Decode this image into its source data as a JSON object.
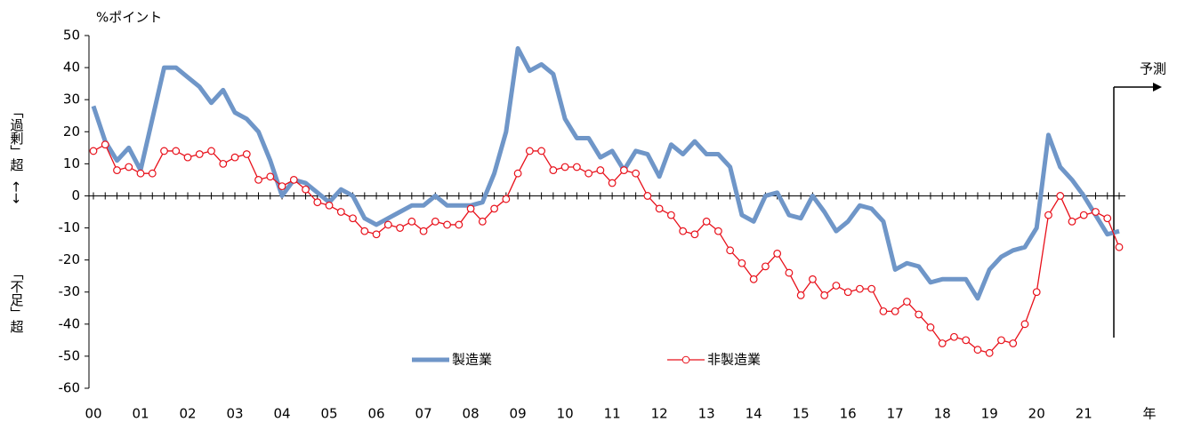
{
  "chart_data": {
    "type": "line",
    "y_axis_unit": "%ポイント",
    "x_axis_label": "年",
    "side_label_top": "「過剰」超",
    "side_label_arrow": "←→",
    "side_label_bottom": "「不足」超",
    "forecast_label": "予測",
    "categories": [
      "00",
      null,
      null,
      null,
      "01",
      null,
      null,
      null,
      "02",
      null,
      null,
      null,
      "03",
      null,
      null,
      null,
      "04",
      null,
      null,
      null,
      "05",
      null,
      null,
      null,
      "06",
      null,
      null,
      null,
      "07",
      null,
      null,
      null,
      "08",
      null,
      null,
      null,
      "09",
      null,
      null,
      null,
      "10",
      null,
      null,
      null,
      "11",
      null,
      null,
      null,
      "12",
      null,
      null,
      null,
      "13",
      null,
      null,
      null,
      "14",
      null,
      null,
      null,
      "15",
      null,
      null,
      null,
      "16",
      null,
      null,
      null,
      "17",
      null,
      null,
      null,
      "18",
      null,
      null,
      null,
      "19",
      null,
      null,
      null,
      "20",
      null,
      null,
      null,
      "21",
      null,
      null,
      null
    ],
    "series": [
      {
        "name": "製造業",
        "color": "#6f96c8",
        "values": [
          28,
          17,
          11,
          15,
          8,
          24,
          40,
          40,
          37,
          34,
          29,
          33,
          26,
          24,
          20,
          11,
          0,
          5,
          4,
          1,
          -2,
          2,
          0,
          -7,
          -9,
          -7,
          -5,
          -3,
          -3,
          0,
          -3,
          -3,
          -3,
          -2,
          7,
          20,
          46,
          39,
          41,
          38,
          24,
          18,
          18,
          12,
          14,
          8,
          14,
          13,
          6,
          16,
          13,
          17,
          13,
          13,
          9,
          -6,
          -8,
          0,
          1,
          -6,
          -7,
          0,
          -5,
          -11,
          -8,
          -3,
          -4,
          -8,
          -23,
          -21,
          -22,
          -27,
          -26,
          -26,
          -26,
          -32,
          -23,
          -19,
          -17,
          -16,
          -10,
          19,
          9,
          5,
          0,
          -6,
          -12,
          -11
        ]
      },
      {
        "name": "非製造業",
        "color": "#e8101a",
        "values": [
          14,
          16,
          8,
          9,
          7,
          7,
          14,
          14,
          12,
          13,
          14,
          10,
          12,
          13,
          5,
          6,
          3,
          5,
          2,
          -2,
          -3,
          -5,
          -7,
          -11,
          -12,
          -9,
          -10,
          -8,
          -11,
          -8,
          -9,
          -9,
          -4,
          -8,
          -4,
          -1,
          7,
          14,
          14,
          8,
          9,
          9,
          7,
          8,
          4,
          8,
          7,
          0,
          -4,
          -6,
          -11,
          -12,
          -8,
          -11,
          -17,
          -21,
          -26,
          -22,
          -18,
          -24,
          -31,
          -26,
          -31,
          -28,
          -30,
          -29,
          -29,
          -36,
          -36,
          -33,
          -37,
          -41,
          -46,
          -44,
          -45,
          -48,
          -49,
          -45,
          -46,
          -40,
          -30,
          -6,
          0,
          -8,
          -6,
          -5,
          -7,
          -16
        ]
      }
    ],
    "ylim": [
      -60,
      50
    ],
    "yticks": [
      -60,
      -50,
      -40,
      -30,
      -20,
      -10,
      0,
      10,
      20,
      30,
      40,
      50
    ]
  }
}
